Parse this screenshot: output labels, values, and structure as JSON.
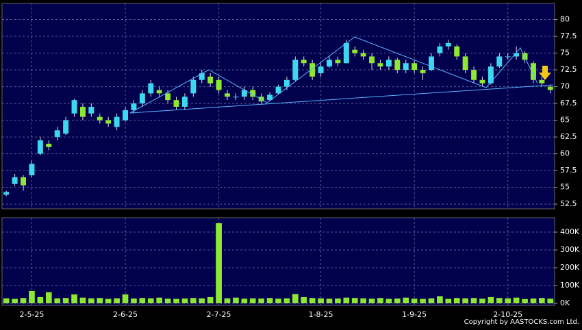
{
  "chart_data": [
    {
      "type": "candlestick",
      "categories": [
        null,
        null,
        null,
        "2-5-25",
        null,
        null,
        null,
        null,
        null,
        null,
        null,
        null,
        null,
        null,
        "2-6-25",
        null,
        null,
        null,
        null,
        null,
        null,
        null,
        null,
        null,
        null,
        "2-7-25",
        null,
        null,
        null,
        null,
        null,
        null,
        null,
        null,
        null,
        null,
        null,
        "1-8-25",
        null,
        null,
        null,
        null,
        null,
        null,
        null,
        null,
        null,
        null,
        "1-9-25",
        null,
        null,
        null,
        null,
        null,
        null,
        null,
        null,
        null,
        null,
        "2-10-25",
        null,
        null,
        null,
        null,
        null
      ],
      "open": [
        53.9,
        55.5,
        56.5,
        56.8,
        60,
        61.5,
        62.5,
        63,
        66,
        67,
        66,
        65.5,
        65,
        64,
        65,
        66.5,
        67.5,
        69,
        69.5,
        69,
        68,
        67,
        69,
        71,
        71.5,
        71,
        69,
        68.5,
        68.5,
        69.5,
        68.5,
        68,
        69,
        70,
        71,
        74,
        73.5,
        72,
        73,
        74,
        73.5,
        75.5,
        75,
        74.5,
        73.5,
        73,
        74,
        72.5,
        73.5,
        72.5,
        72.5,
        75,
        76,
        76,
        74.5,
        72.5,
        71,
        70.5,
        73,
        74.5,
        74.5,
        75,
        73.5,
        71,
        70
      ],
      "high": [
        54.5,
        57,
        56.8,
        59,
        62.5,
        62,
        64,
        65.5,
        68.2,
        67.5,
        67.5,
        66,
        65.5,
        66,
        67,
        68,
        69.5,
        71,
        70,
        69.5,
        68.5,
        69,
        71.5,
        72.5,
        72,
        71.5,
        69.5,
        69,
        70,
        70,
        69,
        69.2,
        70.3,
        71.5,
        74.5,
        74.5,
        74,
        73.5,
        74.5,
        74.5,
        77,
        76,
        75.5,
        75,
        74,
        74.5,
        74.3,
        74,
        74,
        73,
        75,
        76.5,
        77,
        76.3,
        75,
        73,
        71.5,
        73.5,
        75,
        75,
        76,
        75.3,
        73.8,
        71.5,
        70.3
      ],
      "low": [
        53.7,
        55.2,
        54.5,
        56.5,
        59.8,
        60.5,
        62,
        62.8,
        65.5,
        65,
        65.5,
        64.5,
        64,
        63.5,
        64.8,
        66,
        67,
        68.5,
        68.5,
        67.5,
        66.5,
        66.5,
        68.5,
        70.5,
        70,
        69,
        68,
        68,
        68,
        68,
        67.5,
        67.8,
        68.8,
        69.5,
        70.8,
        73,
        71,
        71.5,
        72.8,
        73,
        73.5,
        74.5,
        74,
        72.5,
        72.5,
        72.5,
        72,
        72,
        72,
        71,
        72.3,
        74.5,
        75.5,
        74,
        72,
        70.5,
        70,
        70.3,
        72.8,
        74,
        74,
        73.5,
        70.5,
        70,
        69
      ],
      "close": [
        54.3,
        56.5,
        55.3,
        58.5,
        62,
        61,
        63.5,
        65,
        68,
        65.5,
        67,
        65,
        64.5,
        65.5,
        66.5,
        67.5,
        69,
        70.5,
        69,
        68,
        67,
        68.5,
        71,
        72,
        70.5,
        69.5,
        68.5,
        68.5,
        69.5,
        68.5,
        67.8,
        68.8,
        70,
        71,
        74,
        73.5,
        71.5,
        73,
        74,
        73.5,
        76.5,
        75,
        74.5,
        73.5,
        73,
        74,
        72.5,
        73.5,
        72.5,
        72,
        74.5,
        76,
        76.5,
        74.5,
        72.5,
        71,
        70.5,
        73,
        74.5,
        74.5,
        75,
        74,
        71,
        70.5,
        69.5
      ],
      "up_color": "#3cd8f0",
      "down_color": "#8ce830",
      "ylim": [
        51.8,
        82.4
      ],
      "yticks": [
        52.5,
        55,
        57.5,
        60,
        62.5,
        65,
        67.5,
        70,
        72.5,
        75,
        77.5,
        80
      ],
      "grid": true
    },
    {
      "type": "bar",
      "values": [
        28000,
        25000,
        30000,
        70000,
        35000,
        62000,
        28000,
        30000,
        50000,
        32000,
        28000,
        30000,
        25000,
        28000,
        50000,
        27000,
        30000,
        28000,
        32000,
        26000,
        25000,
        27000,
        30000,
        28000,
        35000,
        450000,
        28000,
        32000,
        26000,
        28000,
        27000,
        30000,
        26000,
        28000,
        52000,
        35000,
        30000,
        28000,
        26000,
        27000,
        32000,
        30000,
        28000,
        26000,
        30000,
        25000,
        27000,
        32000,
        26000,
        25000,
        28000,
        40000,
        25000,
        30000,
        28000,
        30000,
        26000,
        35000,
        30000,
        28000,
        32000,
        24000,
        27000,
        30000,
        26000
      ],
      "color": "#8ce830",
      "ylim": [
        -11500,
        481000
      ],
      "yticks": [
        {
          "value": 0,
          "label": "0K"
        },
        {
          "value": 100000,
          "label": "100K"
        },
        {
          "value": 200000,
          "label": "200K"
        },
        {
          "value": 300000,
          "label": "300K"
        },
        {
          "value": 400000,
          "label": "400K"
        }
      ],
      "grid": true
    }
  ],
  "footer": "Copyright by AASTOCKS.com Ltd."
}
